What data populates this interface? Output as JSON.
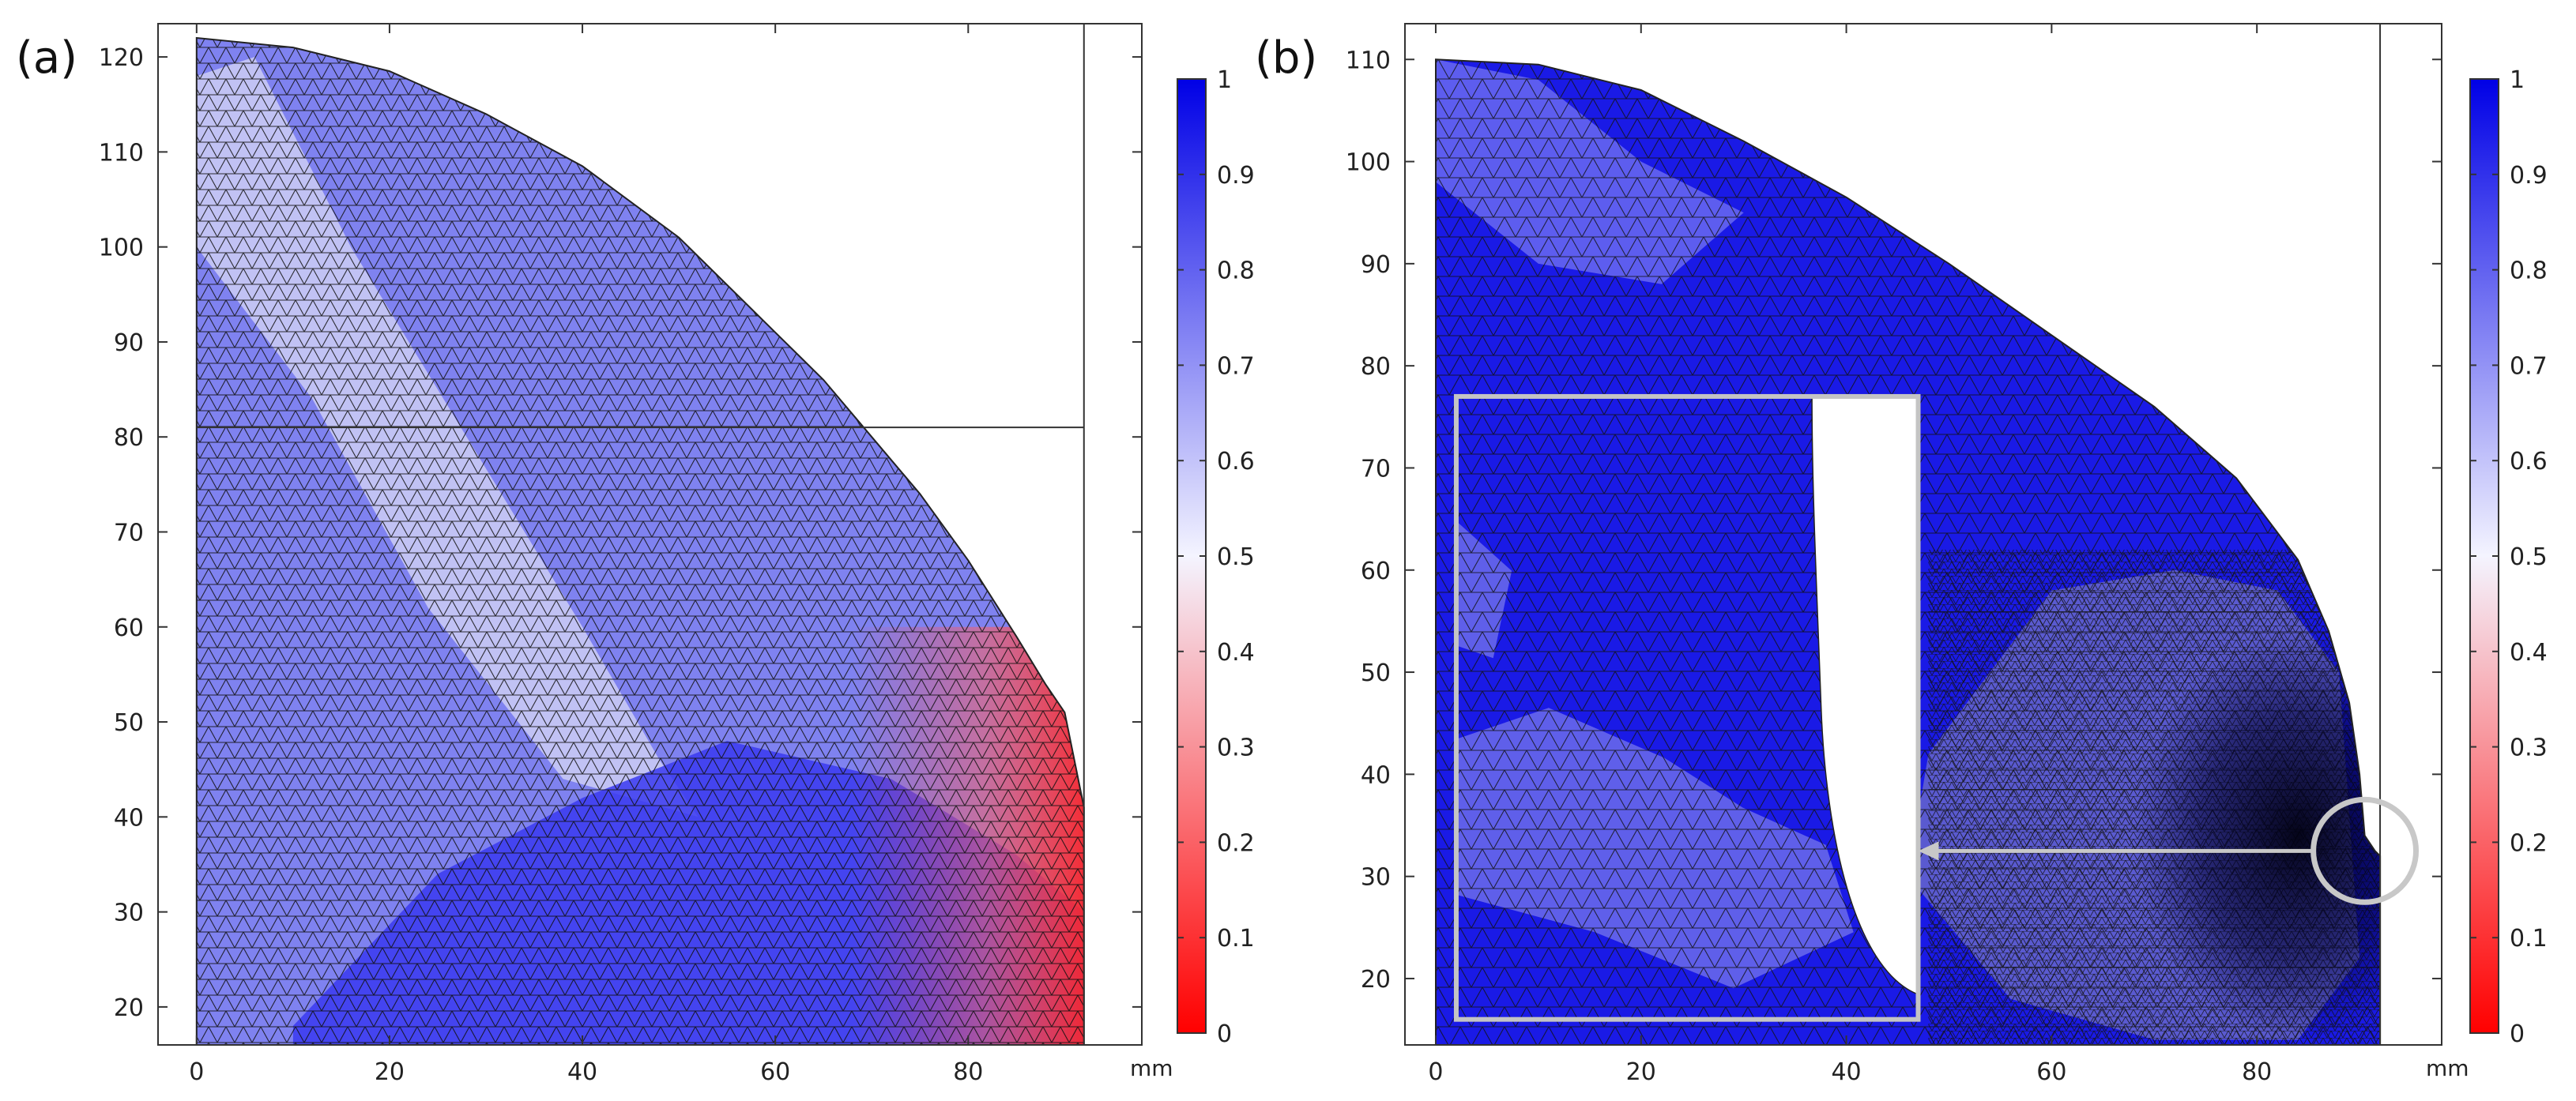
{
  "chart_data": [
    {
      "panel": "(a)",
      "type": "heatmap",
      "description_kind": "triangular finite-element mesh colored by scalar field",
      "x_unit": "mm",
      "xlim": [
        -4,
        98
      ],
      "ylim": [
        16,
        123.5
      ],
      "x_ticks": [
        0,
        20,
        40,
        60,
        80
      ],
      "y_ticks": [
        20,
        30,
        40,
        50,
        60,
        70,
        80,
        90,
        100,
        110,
        120
      ],
      "domain_boundary": {
        "x": [
          0,
          10,
          20,
          30,
          40,
          50,
          60,
          65,
          70,
          75,
          80,
          85,
          88,
          90,
          92,
          92,
          0
        ],
        "y": [
          122,
          121,
          118.5,
          114,
          108.5,
          101,
          91,
          86,
          80,
          74,
          67,
          59,
          54,
          51,
          41,
          16,
          16
        ]
      },
      "reference_lines": [
        {
          "orientation": "horizontal",
          "y": 81,
          "x_from": 0,
          "x_to": 92
        },
        {
          "orientation": "vertical",
          "x": 92,
          "y_from": 16,
          "y_to": 123.5
        }
      ],
      "colorbar": {
        "ticks": [
          0,
          0.1,
          0.2,
          0.3,
          0.4,
          0.5,
          0.6,
          0.7,
          0.8,
          0.9,
          1
        ],
        "labels": [
          "0",
          "0.1",
          "0.2",
          "0.3",
          "0.4",
          "0.5",
          "0.6",
          "0.7",
          "0.8",
          "0.9",
          "1"
        ],
        "range": [
          0,
          1
        ],
        "colormap": "red-white-blue"
      }
    },
    {
      "panel": "(b)",
      "type": "heatmap",
      "description_kind": "triangular finite-element mesh colored by scalar field with magnified inset",
      "x_unit": "mm",
      "xlim": [
        -3,
        98
      ],
      "ylim": [
        13.5,
        113.5
      ],
      "x_ticks": [
        0,
        20,
        40,
        60,
        80
      ],
      "y_ticks": [
        20,
        30,
        40,
        50,
        60,
        70,
        80,
        90,
        100,
        110
      ],
      "domain_boundary": {
        "x": [
          0,
          10,
          20,
          30,
          40,
          50,
          60,
          70,
          78,
          84,
          87,
          89,
          90,
          90.5,
          91.5,
          92,
          92,
          0
        ],
        "y": [
          110,
          109.5,
          107,
          102,
          96.5,
          90,
          83,
          76,
          69,
          61,
          54,
          47,
          40,
          34,
          32.5,
          32,
          13.5,
          13.5
        ]
      },
      "reference_lines": [
        {
          "orientation": "vertical",
          "x": 92,
          "y_from": 13.5,
          "y_to": 113.5
        }
      ],
      "inset_box": {
        "x": [
          2,
          47
        ],
        "y": [
          16,
          77
        ]
      },
      "highlight_circle": {
        "cx": 90.5,
        "cy": 32.5,
        "r": 5
      },
      "arrow": {
        "from": [
          85.5,
          32.5
        ],
        "to": [
          47,
          32.5
        ]
      },
      "colorbar": {
        "ticks": [
          0,
          0.1,
          0.2,
          0.3,
          0.4,
          0.5,
          0.6,
          0.7,
          0.8,
          0.9,
          1
        ],
        "labels": [
          "0",
          "0.1",
          "0.2",
          "0.3",
          "0.4",
          "0.5",
          "0.6",
          "0.7",
          "0.8",
          "0.9",
          "1"
        ],
        "range": [
          0,
          1
        ],
        "colormap": "red-white-blue"
      }
    }
  ],
  "labels": {
    "panel_a": "(a)",
    "panel_b": "(b)",
    "unit_a": "mm",
    "unit_b": "mm"
  },
  "colors": {
    "frame": "#333333",
    "mesh_line": "#1a1a1a",
    "blue": "#1010e0",
    "white": "#f2f2f2",
    "red": "#ff1a1a",
    "inset_frame": "#c4c4c4",
    "circle": "#c8c8c8"
  }
}
